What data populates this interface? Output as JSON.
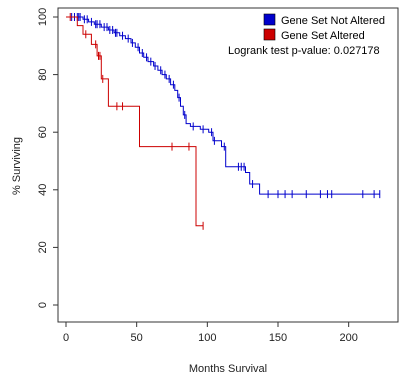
{
  "chart_data": {
    "type": "line",
    "title": "",
    "xlabel": "Months Survival",
    "ylabel": "% Surviving",
    "xlim": [
      0,
      225
    ],
    "ylim": [
      0,
      100
    ],
    "x_ticks": [
      0,
      50,
      100,
      150,
      200
    ],
    "y_ticks": [
      0,
      20,
      40,
      60,
      80,
      100
    ],
    "grid": false,
    "legend_position": "top-right",
    "annotation": "Logrank test p-value:  0.027178",
    "series": [
      {
        "name": "Gene Set Not Altered",
        "color": "#0000cc",
        "steps": [
          [
            0,
            100
          ],
          [
            12,
            99.2
          ],
          [
            16,
            98.3
          ],
          [
            20,
            97.5
          ],
          [
            25,
            96.5
          ],
          [
            30,
            95.5
          ],
          [
            34,
            94.5
          ],
          [
            38,
            93.5
          ],
          [
            42,
            92.5
          ],
          [
            46,
            91
          ],
          [
            49,
            89.5
          ],
          [
            52,
            87.5
          ],
          [
            55,
            86
          ],
          [
            58,
            84.5
          ],
          [
            62,
            83
          ],
          [
            65,
            81.5
          ],
          [
            68,
            80
          ],
          [
            71,
            78.5
          ],
          [
            74,
            76.5
          ],
          [
            77,
            74.5
          ],
          [
            79,
            72
          ],
          [
            81,
            69
          ],
          [
            83,
            66
          ],
          [
            85,
            63
          ],
          [
            88,
            62
          ],
          [
            95,
            61
          ],
          [
            101,
            60
          ],
          [
            104,
            57
          ],
          [
            110,
            55
          ],
          [
            113,
            48
          ],
          [
            125,
            48
          ],
          [
            127,
            46
          ],
          [
            130,
            42
          ],
          [
            135,
            42
          ],
          [
            137,
            38.5
          ],
          [
            222,
            38.5
          ]
        ],
        "censor_x": [
          4,
          6,
          8,
          9,
          10,
          13,
          15,
          18,
          21,
          22,
          24,
          27,
          29,
          31,
          33,
          35,
          36,
          40,
          44,
          47,
          51,
          54,
          57,
          60,
          63,
          67,
          70,
          73,
          76,
          80,
          84,
          90,
          97,
          103,
          105,
          112,
          122,
          124,
          126,
          132,
          143,
          150,
          155,
          160,
          170,
          180,
          185,
          188,
          210,
          218,
          222
        ]
      },
      {
        "name": "Gene Set Altered",
        "color": "#cc0000",
        "steps": [
          [
            0,
            100
          ],
          [
            8,
            97
          ],
          [
            12,
            94
          ],
          [
            18,
            90.5
          ],
          [
            22,
            86.5
          ],
          [
            25,
            78.5
          ],
          [
            30,
            69
          ],
          [
            50,
            69
          ],
          [
            52,
            55
          ],
          [
            89,
            55
          ],
          [
            92,
            27.5
          ],
          [
            97,
            27.5
          ]
        ],
        "censor_x": [
          3,
          14,
          21,
          23,
          24,
          26,
          36,
          40,
          75,
          87,
          97
        ]
      }
    ]
  }
}
